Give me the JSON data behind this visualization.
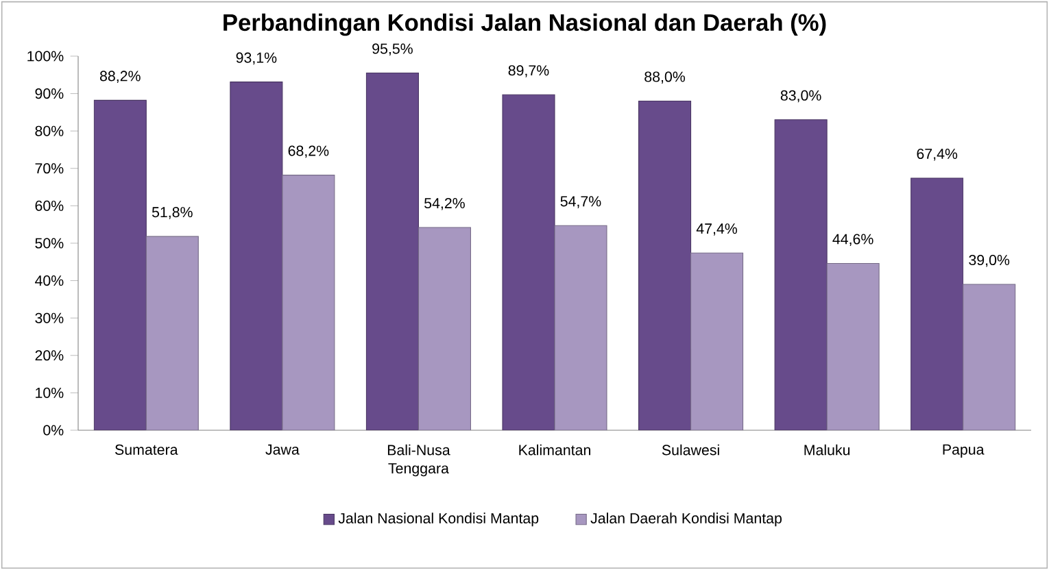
{
  "chart_data": {
    "type": "bar",
    "title": "Perbandingan Kondisi Jalan Nasional dan Daerah (%)",
    "categories": [
      "Sumatera",
      "Jawa",
      "Bali-Nusa Tenggara",
      "Kalimantan",
      "Sulawesi",
      "Maluku",
      "Papua"
    ],
    "series": [
      {
        "name": "Jalan Nasional Kondisi Mantap",
        "color": "#674b8b",
        "values": [
          88.2,
          93.1,
          95.5,
          89.7,
          88.0,
          83.0,
          67.4
        ],
        "value_labels": [
          "88,2%",
          "93,1%",
          "95,5%",
          "89,7%",
          "88,0%",
          "83,0%",
          "67,4%"
        ]
      },
      {
        "name": "Jalan Daerah Kondisi Mantap",
        "color": "#a797c0",
        "values": [
          51.8,
          68.2,
          54.2,
          54.7,
          47.4,
          44.6,
          39.0
        ],
        "value_labels": [
          "51,8%",
          "68,2%",
          "54,2%",
          "54,7%",
          "47,4%",
          "44,6%",
          "39,0%"
        ]
      }
    ],
    "ylim": [
      0,
      100
    ],
    "yticks": [
      {
        "value": 0,
        "label": "0%"
      },
      {
        "value": 10,
        "label": "10%"
      },
      {
        "value": 20,
        "label": "20%"
      },
      {
        "value": 30,
        "label": "30%"
      },
      {
        "value": 40,
        "label": "40%"
      },
      {
        "value": 50,
        "label": "50%"
      },
      {
        "value": 60,
        "label": "60%"
      },
      {
        "value": 70,
        "label": "70%"
      },
      {
        "value": 80,
        "label": "80%"
      },
      {
        "value": 90,
        "label": "90%"
      },
      {
        "value": 100,
        "label": "100%"
      }
    ],
    "legend": "bottom",
    "grid": false
  }
}
